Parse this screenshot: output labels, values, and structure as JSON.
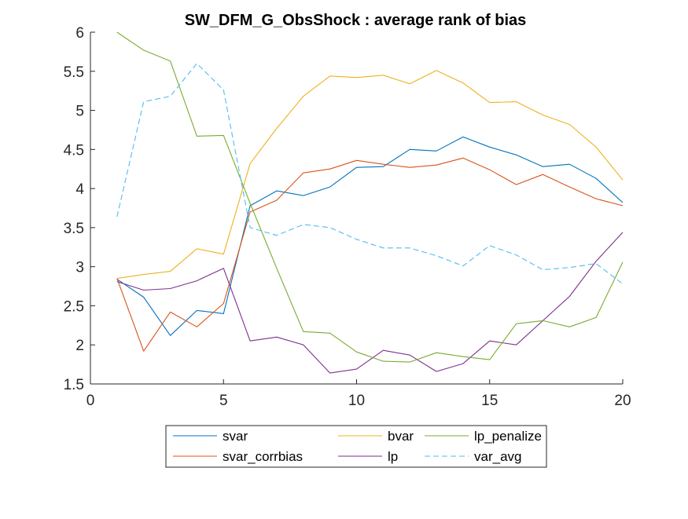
{
  "chart_data": {
    "type": "line",
    "title": "SW_DFM_G_ObsShock : average rank of bias",
    "xlabel": "",
    "ylabel": "",
    "xlim": [
      0,
      20
    ],
    "ylim": [
      1.5,
      6
    ],
    "xticks": [
      0,
      5,
      10,
      15,
      20
    ],
    "yticks": [
      1.5,
      2,
      2.5,
      3,
      3.5,
      4,
      4.5,
      5,
      5.5,
      6
    ],
    "x": [
      1,
      2,
      3,
      4,
      5,
      6,
      7,
      8,
      9,
      10,
      11,
      12,
      13,
      14,
      15,
      16,
      17,
      18,
      19,
      20
    ],
    "grid": false,
    "legend_position": "bottom-outside",
    "series": [
      {
        "name": "svar",
        "color": "#0072BD",
        "dash": "solid",
        "values": [
          2.84,
          2.61,
          2.12,
          2.44,
          2.4,
          3.78,
          3.97,
          3.91,
          4.02,
          4.27,
          4.28,
          4.5,
          4.48,
          4.66,
          4.53,
          4.43,
          4.28,
          4.31,
          4.13,
          3.82
        ]
      },
      {
        "name": "svar_corrbias",
        "color": "#D95319",
        "dash": "solid",
        "values": [
          2.85,
          1.92,
          2.42,
          2.23,
          2.53,
          3.7,
          3.85,
          4.2,
          4.25,
          4.36,
          4.31,
          4.27,
          4.3,
          4.39,
          4.24,
          4.05,
          4.18,
          4.02,
          3.87,
          3.78
        ]
      },
      {
        "name": "bvar",
        "color": "#EDB120",
        "dash": "solid",
        "values": [
          2.85,
          2.9,
          2.94,
          3.23,
          3.16,
          4.32,
          4.77,
          5.18,
          5.44,
          5.42,
          5.45,
          5.34,
          5.51,
          5.35,
          5.1,
          5.11,
          4.94,
          4.82,
          4.53,
          4.11
        ]
      },
      {
        "name": "lp",
        "color": "#7E2F8E",
        "dash": "solid",
        "values": [
          2.81,
          2.7,
          2.72,
          2.82,
          2.98,
          2.05,
          2.1,
          2.0,
          1.64,
          1.69,
          1.93,
          1.87,
          1.66,
          1.76,
          2.05,
          2.0,
          2.31,
          2.62,
          3.07,
          3.44
        ]
      },
      {
        "name": "lp_penalize",
        "color": "#77AC30",
        "dash": "solid",
        "values": [
          6.0,
          5.77,
          5.63,
          4.67,
          4.68,
          3.81,
          2.98,
          2.17,
          2.15,
          1.91,
          1.79,
          1.78,
          1.9,
          1.85,
          1.81,
          2.27,
          2.31,
          2.23,
          2.35,
          3.06
        ]
      },
      {
        "name": "var_avg",
        "color": "#4DBEEE",
        "dash": "dashed",
        "values": [
          3.64,
          5.11,
          5.18,
          5.6,
          5.26,
          3.5,
          3.4,
          3.54,
          3.5,
          3.35,
          3.24,
          3.24,
          3.14,
          3.01,
          3.27,
          3.15,
          2.96,
          2.99,
          3.04,
          2.78
        ]
      }
    ],
    "legend_order": [
      [
        "svar",
        "bvar",
        "lp_penalize"
      ],
      [
        "svar_corrbias",
        "lp",
        "var_avg"
      ]
    ]
  }
}
